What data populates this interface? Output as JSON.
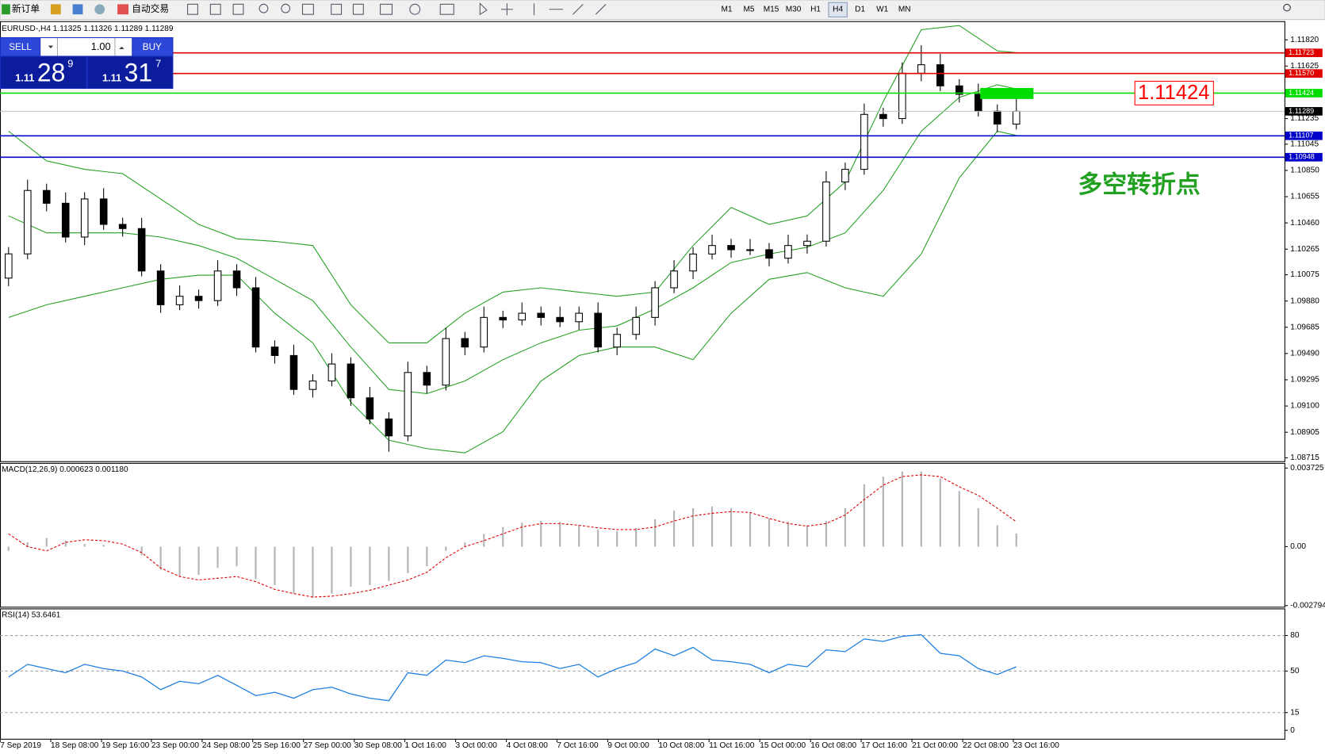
{
  "toolbar": {
    "new_order": "新订单",
    "auto_trading": "自动交易",
    "timeframes": [
      "M1",
      "M5",
      "M15",
      "M30",
      "H1",
      "H4",
      "D1",
      "W1",
      "MN"
    ],
    "active_timeframe": "H4"
  },
  "trade_panel": {
    "sell": "SELL",
    "buy": "BUY",
    "lots": "1.00",
    "bid": {
      "prefix": "1.11",
      "big": "28",
      "sup": "9"
    },
    "ask": {
      "prefix": "1.11",
      "big": "31",
      "sup": "7"
    }
  },
  "chart_data": [
    {
      "type": "candlestick",
      "title": "EURUSD-,H4 1.11325 1.11326 1.11289 1.11289",
      "x": [
        0,
        1,
        2,
        3,
        4,
        5,
        6,
        7,
        8,
        9,
        10,
        11,
        12,
        13,
        14,
        15,
        16,
        17,
        18,
        19,
        20,
        21,
        22,
        23,
        24,
        25,
        26,
        27,
        28,
        29,
        30,
        31,
        32,
        33,
        34,
        35,
        36,
        37,
        38,
        39,
        40,
        41,
        42,
        43,
        44,
        45,
        46,
        47,
        48,
        49,
        50,
        51,
        52,
        53
      ],
      "open": [
        1.1005,
        1.1023,
        1.10701,
        1.10606,
        1.10355,
        1.10638,
        1.10449,
        1.10418,
        1.10103,
        1.09852,
        1.09915,
        1.09883,
        1.10103,
        1.09978,
        1.09538,
        1.09475,
        1.09223,
        1.09286,
        1.09412,
        1.09161,
        1.09004,
        1.08878,
        1.09349,
        1.09255,
        1.09601,
        1.09538,
        1.09758,
        1.09739,
        1.09789,
        1.09758,
        1.09726,
        1.09789,
        1.09538,
        1.09632,
        1.09758,
        1.09978,
        1.10103,
        1.10229,
        1.10292,
        1.10261,
        1.10261,
        1.10198,
        1.10292,
        1.10324,
        1.10764,
        1.10858,
        1.11266,
        1.11235,
        1.11572,
        1.11635,
        1.11478,
        1.11415,
        1.1129,
        1.11194
      ],
      "high": [
        1.1028,
        1.10781,
        1.10751,
        1.10686,
        1.10688,
        1.10718,
        1.10499,
        1.10498,
        1.10153,
        1.09995,
        1.09965,
        1.10183,
        1.10153,
        1.10058,
        1.09588,
        1.09555,
        1.09336,
        1.09492,
        1.09462,
        1.09241,
        1.09054,
        1.09429,
        1.09399,
        1.09681,
        1.09651,
        1.09838,
        1.09808,
        1.09869,
        1.09839,
        1.09838,
        1.09839,
        1.09869,
        1.09682,
        1.09838,
        1.10028,
        1.10183,
        1.10279,
        1.10372,
        1.10342,
        1.10341,
        1.10311,
        1.10372,
        1.10374,
        1.10844,
        1.10908,
        1.11346,
        1.11316,
        1.11652,
        1.1178,
        1.11715,
        1.11528,
        1.11495,
        1.1134,
        1.114
      ],
      "low": [
        1.0999,
        1.1019,
        1.10546,
        1.10315,
        1.10295,
        1.10409,
        1.10358,
        1.10063,
        1.09792,
        1.09812,
        1.09823,
        1.09843,
        1.09918,
        1.09498,
        1.09415,
        1.09183,
        1.09163,
        1.09246,
        1.09101,
        1.08964,
        1.0876,
        1.08838,
        1.09195,
        1.09215,
        1.09478,
        1.09498,
        1.09679,
        1.09699,
        1.09698,
        1.09686,
        1.09666,
        1.09498,
        1.09478,
        1.09592,
        1.09698,
        1.09938,
        1.10043,
        1.10189,
        1.10201,
        1.10221,
        1.10138,
        1.10158,
        1.10232,
        1.10284,
        1.10704,
        1.10818,
        1.11175,
        1.11195,
        1.11512,
        1.11438,
        1.11355,
        1.1125,
        1.11134,
        1.11154
      ],
      "close": [
        1.1023,
        1.10701,
        1.10606,
        1.10355,
        1.10638,
        1.10449,
        1.10418,
        1.10103,
        1.09852,
        1.09915,
        1.09883,
        1.10103,
        1.09978,
        1.09538,
        1.09475,
        1.09223,
        1.09286,
        1.09412,
        1.09161,
        1.09004,
        1.08878,
        1.09349,
        1.09255,
        1.09601,
        1.09538,
        1.09758,
        1.09739,
        1.09789,
        1.09758,
        1.09726,
        1.09789,
        1.09538,
        1.09632,
        1.09758,
        1.09978,
        1.10103,
        1.10229,
        1.10292,
        1.10261,
        1.10261,
        1.10198,
        1.10292,
        1.10324,
        1.10764,
        1.10858,
        1.11266,
        1.11235,
        1.11572,
        1.11635,
        1.11478,
        1.11415,
        1.1129,
        1.11194,
        1.11289
      ],
      "up_color": "#ffffff",
      "down_color": "#000000",
      "bands": {
        "color": "#22a022",
        "x": [
          0,
          2,
          4,
          6,
          8,
          10,
          12,
          14,
          16,
          18,
          20,
          22,
          24,
          26,
          28,
          30,
          32,
          34,
          36,
          38,
          40,
          42,
          44,
          46,
          48,
          50,
          52,
          53
        ],
        "upper": [
          1.11141,
          1.10921,
          1.10858,
          1.10826,
          1.10638,
          1.10449,
          1.10342,
          1.10323,
          1.10292,
          1.09852,
          1.09569,
          1.09569,
          1.09789,
          1.09946,
          1.09978,
          1.09946,
          1.09915,
          1.09946,
          1.10292,
          1.10575,
          1.10449,
          1.10512,
          1.10764,
          1.11361,
          1.11895,
          1.11926,
          1.11738,
          1.11725
        ],
        "middle": [
          1.10512,
          1.10386,
          1.10386,
          1.10386,
          1.10355,
          1.10292,
          1.10198,
          1.10041,
          1.09883,
          1.09538,
          1.09223,
          1.09192,
          1.09286,
          1.09444,
          1.09569,
          1.09663,
          1.09695,
          1.09821,
          1.09978,
          1.10166,
          1.10229,
          1.10279,
          1.10386,
          1.10701,
          1.11141,
          1.11392,
          1.11486,
          1.11455
        ],
        "lower": [
          1.09758,
          1.09852,
          1.09915,
          1.09978,
          1.10041,
          1.10072,
          1.10072,
          1.09789,
          1.09569,
          1.09129,
          1.08846,
          1.08783,
          1.08752,
          1.08909,
          1.09286,
          1.09475,
          1.09538,
          1.09538,
          1.09444,
          1.09789,
          1.10041,
          1.10091,
          1.09978,
          1.09915,
          1.10229,
          1.10795,
          1.11141,
          1.1111
        ]
      },
      "hlines": [
        {
          "value": 1.11723,
          "label": "1.11723",
          "color": "#e00000"
        },
        {
          "value": 1.1157,
          "label": "1.11570",
          "color": "#e00000"
        },
        {
          "value": 1.11424,
          "label": "1.11424",
          "color": "#00dd00"
        },
        {
          "value": 1.11107,
          "label": "1.11107",
          "color": "#0000c8"
        },
        {
          "value": 1.10948,
          "label": "1.10948",
          "color": "#0000c8"
        }
      ],
      "last_price": {
        "value": 1.11289,
        "label": "1.11289"
      },
      "annotations": [
        {
          "text": "1.11424",
          "color": "#ff0000"
        },
        {
          "text": "多空转折点",
          "color": "#22a022"
        }
      ],
      "xlim": [
        -0.45,
        67.1
      ],
      "ylim": [
        1.0869,
        1.11946
      ],
      "yticks": [
        {
          "value": 1.1182,
          "label": "1.11820"
        },
        1.11625,
        1.11235,
        1.11045,
        {
          "value": 1.1085,
          "label": "1.10850"
        },
        1.10655,
        {
          "value": 1.1046,
          "label": "1.10460"
        },
        1.10265,
        1.10075,
        {
          "value": 1.0988,
          "label": "1.09880"
        },
        1.09685,
        {
          "value": 1.0949,
          "label": "1.09490"
        },
        1.09295,
        {
          "value": 1.091,
          "label": "1.09100"
        },
        1.08905,
        1.08715
      ]
    },
    {
      "type": "macd",
      "title": "MACD(12,26,9) 0.000623 0.001180",
      "x": [
        0,
        1,
        2,
        3,
        4,
        5,
        6,
        7,
        8,
        9,
        10,
        11,
        12,
        13,
        14,
        15,
        16,
        17,
        18,
        19,
        20,
        21,
        22,
        23,
        24,
        25,
        26,
        27,
        28,
        29,
        30,
        31,
        32,
        33,
        34,
        35,
        36,
        37,
        38,
        39,
        40,
        41,
        42,
        43,
        44,
        45,
        46,
        47,
        48,
        49,
        50,
        51,
        52,
        53
      ],
      "series": [
        {
          "type": "bar",
          "color": "#b4b4b4",
          "values": [
            -0.000203,
            0.000203,
            0.000405,
            0.000284,
            0.000122,
            8.1e-05,
            0,
            -0.000405,
            -0.001094,
            -0.001418,
            -0.001337,
            -0.001013,
            -0.000932,
            -0.001539,
            -0.001823,
            -0.002228,
            -0.00243,
            -0.002228,
            -0.001904,
            -0.001823,
            -0.00162,
            -0.001256,
            -0.000932,
            -0.000203,
            0.000203,
            0.000608,
            0.000932,
            0.001134,
            0.001215,
            0.001175,
            0.001013,
            0.00081,
            0.000729,
            0.000891,
            0.001296,
            0.001701,
            0.001823,
            0.001904,
            0.001823,
            0.00162,
            0.001337,
            0.001175,
            0.001013,
            0.001215,
            0.001823,
            0.002957,
            0.003321,
            0.003564,
            0.003564,
            0.00324,
            0.002633,
            0.001823,
            0.001013,
            0.000623
          ]
        },
        {
          "type": "line",
          "color": "#e00000",
          "dashed": true,
          "values": [
            0.000608,
            0,
            -0.000203,
            0.000203,
            0.000324,
            0.000284,
            0.000122,
            -0.000284,
            -0.001013,
            -0.001418,
            -0.00158,
            -0.001499,
            -0.001418,
            -0.001661,
            -0.002025,
            -0.002228,
            -0.00239,
            -0.002349,
            -0.002228,
            -0.002066,
            -0.001823,
            -0.00158,
            -0.001215,
            -0.000527,
            0,
            0.000284,
            0.000608,
            0.000932,
            0.001094,
            0.001094,
            0.001013,
            0.000891,
            0.00081,
            0.00081,
            0.000932,
            0.001215,
            0.001458,
            0.00158,
            0.001661,
            0.00162,
            0.001337,
            0.001094,
            0.000972,
            0.001094,
            0.001499,
            0.002228,
            0.002916,
            0.003321,
            0.003402,
            0.003321,
            0.002835,
            0.00243,
            0.001823,
            0.00118
          ]
        }
      ],
      "xlim": [
        -0.45,
        67.1
      ],
      "ylim": [
        -0.00285,
        0.00393
      ],
      "yticks": [
        0.003725,
        {
          "value": 0,
          "label": "0.00"
        },
        -0.002794
      ]
    },
    {
      "type": "line",
      "title": "RSI(14) 53.6461",
      "color": "#1e7fe0",
      "x": [
        0,
        1,
        2,
        3,
        4,
        5,
        6,
        7,
        8,
        9,
        10,
        11,
        12,
        13,
        14,
        15,
        16,
        17,
        18,
        19,
        20,
        21,
        22,
        23,
        24,
        25,
        26,
        27,
        28,
        29,
        30,
        31,
        32,
        33,
        34,
        35,
        36,
        37,
        38,
        39,
        40,
        41,
        42,
        43,
        44,
        45,
        46,
        47,
        48,
        49,
        50,
        51,
        52,
        53
      ],
      "values": [
        45,
        55.7,
        52.1,
        48.6,
        55.7,
        52.1,
        50,
        45,
        34.3,
        41.4,
        39.3,
        46.4,
        37.9,
        29.3,
        32.1,
        27.1,
        34.3,
        36.4,
        30.7,
        27.1,
        25,
        48.6,
        46.4,
        59.3,
        57.1,
        62.9,
        60.7,
        57.9,
        57.1,
        52.1,
        55.7,
        45,
        52.1,
        57.1,
        68.6,
        62.9,
        70,
        59.3,
        57.9,
        55.7,
        48.6,
        55.7,
        53.6,
        67.9,
        66.4,
        77.1,
        75,
        79.3,
        80.7,
        65,
        62.9,
        52.1,
        47.1,
        53.6
      ],
      "levels": [
        15,
        50,
        80
      ],
      "xlim": [
        -0.45,
        67.1
      ],
      "ylim": [
        -7.1,
        102.1
      ],
      "yticks": [
        0,
        15,
        50,
        80
      ],
      "xticks": [
        {
          "value": -0.44,
          "label": "7 Sep 2019"
        },
        {
          "value": 2.22,
          "label": "18 Sep 08:00"
        },
        {
          "value": 4.89,
          "label": "19 Sep 16:00"
        },
        {
          "value": 7.51,
          "label": "23 Sep 00:00"
        },
        {
          "value": 10.18,
          "label": "24 Sep 08:00"
        },
        {
          "value": 12.84,
          "label": "25 Sep 16:00"
        },
        {
          "value": 15.51,
          "label": "27 Sep 00:00"
        },
        {
          "value": 18.18,
          "label": "30 Sep 08:00"
        },
        {
          "value": 20.84,
          "label": "1 Oct 16:00"
        },
        {
          "value": 23.51,
          "label": "3 Oct 00:00"
        },
        {
          "value": 26.18,
          "label": "4 Oct 08:00"
        },
        {
          "value": 28.84,
          "label": "7 Oct 16:00"
        },
        {
          "value": 31.51,
          "label": "9 Oct 00:00"
        },
        {
          "value": 34.18,
          "label": "10 Oct 08:00"
        },
        {
          "value": 36.84,
          "label": "11 Oct 16:00"
        },
        {
          "value": 39.51,
          "label": "15 Oct 00:00"
        },
        {
          "value": 42.18,
          "label": "16 Oct 08:00"
        },
        {
          "value": 44.84,
          "label": "17 Oct 16:00"
        },
        {
          "value": 47.51,
          "label": "21 Oct 00:00"
        },
        {
          "value": 50.18,
          "label": "22 Oct 08:00"
        },
        {
          "value": 52.84,
          "label": "23 Oct 16:00"
        }
      ]
    }
  ]
}
